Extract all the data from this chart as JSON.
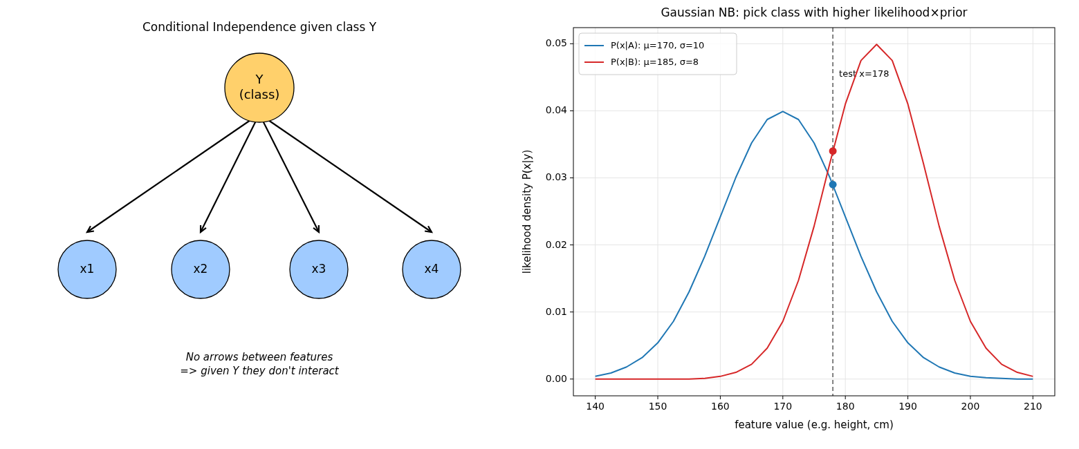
{
  "chart_data": [
    {
      "type": "other",
      "title": "Conditional Independence given class Y",
      "annotations": [
        "Y\n(class)",
        "x1",
        "x2",
        "x3",
        "x4",
        "No arrows between features\n=> given Y they don't interact"
      ]
    },
    {
      "type": "line",
      "title": "Gaussian NB: pick class with higher likelihood×prior",
      "xlabel": "feature value (e.g. height, cm)",
      "ylabel": "likelihood density P(x|y)",
      "x": [
        140,
        142.5,
        145,
        147.5,
        150,
        152.5,
        155,
        157.5,
        160,
        162.5,
        165,
        167.5,
        170,
        172.5,
        175,
        177.5,
        180,
        182.5,
        185,
        187.5,
        190,
        192.5,
        195,
        197.5,
        200,
        202.5,
        205,
        207.5,
        210
      ],
      "series": [
        {
          "name": "P(x|A): μ=170, σ=10",
          "color": "#1f77b4",
          "values": [
            0.0004,
            0.0009,
            0.0018,
            0.0032,
            0.0054,
            0.0086,
            0.013,
            0.0183,
            0.0242,
            0.0301,
            0.0352,
            0.0387,
            0.0399,
            0.0387,
            0.0352,
            0.0301,
            0.0242,
            0.0183,
            0.013,
            0.0086,
            0.0054,
            0.0032,
            0.0018,
            0.0009,
            0.0004,
            0.0002,
            0.0001,
            0,
            0
          ]
        },
        {
          "name": "P(x|B): μ=185, σ=8",
          "color": "#d62728",
          "values": [
            0,
            0,
            0,
            0,
            0,
            0,
            0,
            0.0001,
            0.0004,
            0.001,
            0.0022,
            0.0046,
            0.0086,
            0.0147,
            0.0228,
            0.0321,
            0.041,
            0.0475,
            0.0499,
            0.0475,
            0.041,
            0.0321,
            0.0228,
            0.0147,
            0.0086,
            0.0046,
            0.0022,
            0.001,
            0.0004
          ]
        },
        {
          "type": "scatter",
          "color": "#1f77b4",
          "x": [
            178
          ],
          "values": [
            0.029
          ],
          "marker": "circle"
        },
        {
          "type": "scatter",
          "color": "#d62728",
          "x": [
            178
          ],
          "values": [
            0.034
          ],
          "marker": "circle"
        }
      ],
      "xlim": [
        136.5,
        213.5
      ],
      "xticks": [
        140,
        150,
        160,
        170,
        180,
        190,
        200,
        210
      ],
      "ylim": [
        -0.0025,
        0.0524
      ],
      "yticks": [
        {
          "value": 0,
          "label": "0.00"
        },
        0.01,
        0.02,
        0.03,
        0.04,
        0.05
      ],
      "ref_lines": [
        {
          "axis": "x",
          "value": 178,
          "label": "test x=178",
          "color": "#7f7f7f",
          "line_style": "dashed"
        }
      ],
      "grid": true,
      "legend": "top left",
      "line_style": "solid"
    }
  ]
}
